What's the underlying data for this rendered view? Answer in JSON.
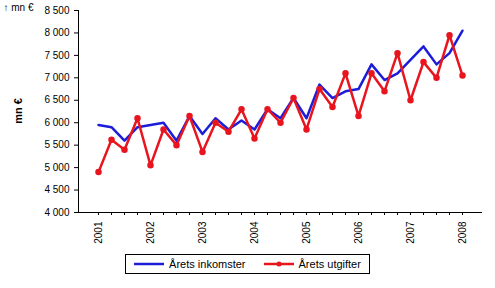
{
  "chart_data": {
    "type": "line",
    "y_label": "mn €",
    "categories": [
      "2001",
      null,
      null,
      null,
      "2002",
      null,
      null,
      null,
      "2003",
      null,
      null,
      null,
      "2004",
      null,
      null,
      null,
      "2005",
      null,
      null,
      null,
      "2006",
      null,
      null,
      null,
      "2007",
      null,
      null,
      null,
      "2008"
    ],
    "series": [
      {
        "name": "Årets inkomster",
        "color": "#1c1cd9",
        "marker": "none",
        "line_style": "solid",
        "values": [
          5950,
          5900,
          5600,
          5900,
          5950,
          6000,
          5600,
          6150,
          5750,
          6100,
          5850,
          6050,
          5850,
          6300,
          6100,
          6550,
          6100,
          6850,
          6550,
          6700,
          6750,
          7300,
          6950,
          7100,
          7400,
          7700,
          7300,
          7550,
          8050
        ]
      },
      {
        "name": "Årets utgifter",
        "color": "#e8141e",
        "marker": "circle",
        "line_style": "solid",
        "values": [
          4900,
          5620,
          5400,
          6100,
          5050,
          5850,
          5500,
          6150,
          5350,
          6000,
          5800,
          6300,
          5650,
          6300,
          6000,
          6550,
          5850,
          6750,
          6350,
          7100,
          6150,
          7100,
          6700,
          7550,
          6500,
          7350,
          7000,
          7950,
          7050
        ]
      }
    ],
    "ylim": [
      4000,
      8500
    ],
    "yticks": [
      {
        "value": 4000,
        "label": "4 000"
      },
      {
        "value": 4500,
        "label": "4 500"
      },
      {
        "value": 5000,
        "label": "5 000"
      },
      {
        "value": 5500,
        "label": "5 500"
      },
      {
        "value": 6000,
        "label": "6 000"
      },
      {
        "value": 6500,
        "label": "6 500"
      },
      {
        "value": 7000,
        "label": "7 000"
      },
      {
        "value": 7500,
        "label": "7 500"
      },
      {
        "value": 8000,
        "label": "8 000"
      },
      {
        "value": 8500,
        "label": "8 500"
      }
    ],
    "grid": false,
    "legend": "bottom"
  }
}
